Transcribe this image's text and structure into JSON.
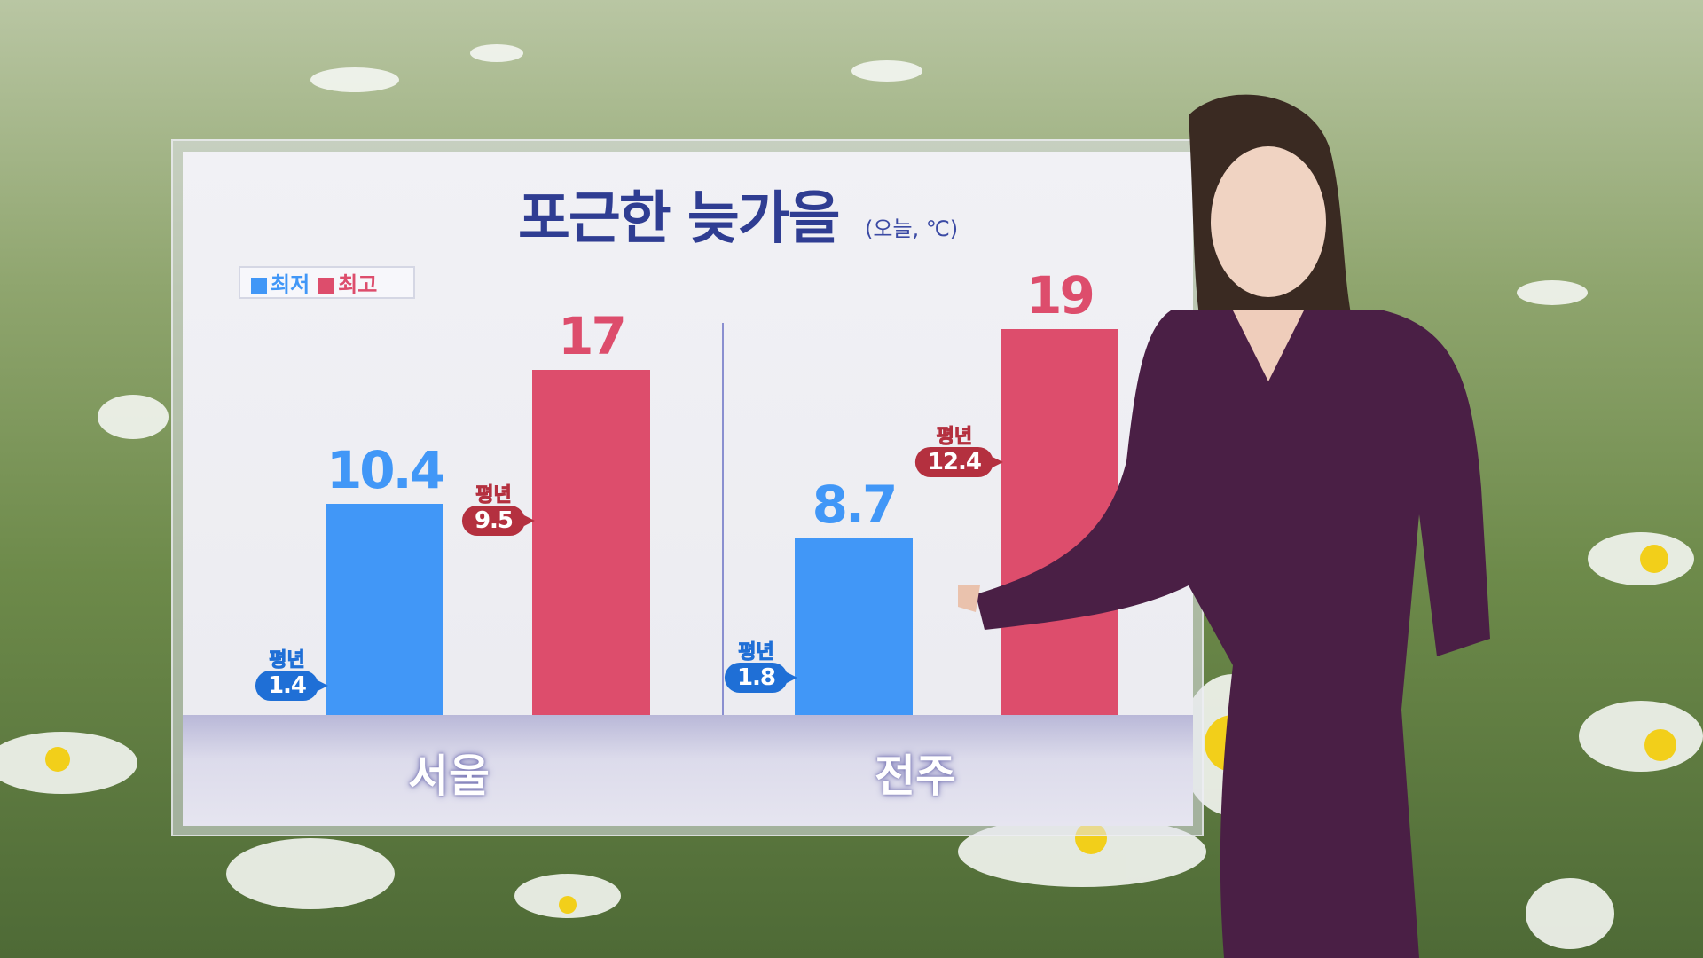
{
  "title": "포근한 늦가을",
  "subtitle": "(오늘, ℃)",
  "colors": {
    "min": "#4197f7",
    "max": "#dd4d6c",
    "title": "#2f3d92",
    "normal_min": "#1f6fd6",
    "normal_max": "#b4303f"
  },
  "chart_data": {
    "type": "bar",
    "title": "포근한 늦가을",
    "unit": "(오늘, ℃)",
    "categories": [
      "서울",
      "전주"
    ],
    "series": [
      {
        "name": "최저",
        "values": [
          10.4,
          8.7
        ],
        "normal_label": "평년",
        "normals": [
          1.4,
          1.8
        ]
      },
      {
        "name": "최고",
        "values": [
          17,
          19
        ],
        "normal_label": "평년",
        "normals": [
          9.5,
          12.4
        ]
      }
    ],
    "legend": "top-left",
    "grid": false,
    "ylim": [
      0,
      19
    ]
  }
}
